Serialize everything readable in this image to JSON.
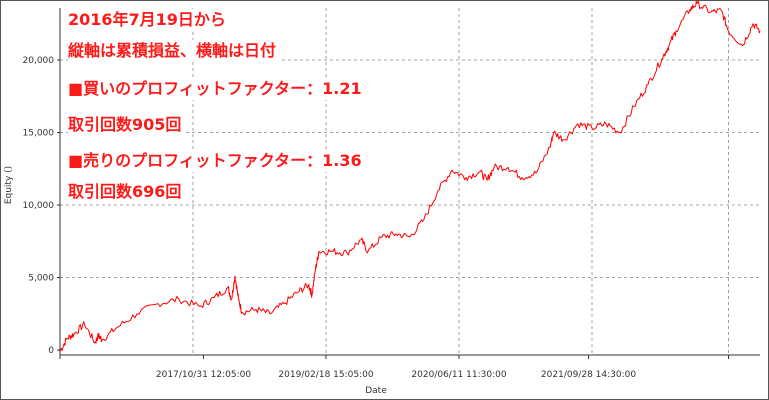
{
  "chart_data": {
    "type": "line",
    "title": "",
    "xlabel": "Date",
    "ylabel": "Equity ()",
    "ylim": [
      -300,
      24500
    ],
    "y_ticks": [
      0,
      5000,
      10000,
      15000,
      20000
    ],
    "y_tick_labels": [
      "0",
      "5,000",
      "10,000",
      "15,000",
      "20,000"
    ],
    "x_ticks": [
      "2017/10/31 12:05:00",
      "2019/02/18 15:05:00",
      "2020/06/11 11:30:00",
      "2021/09/28 14:30:00"
    ],
    "grid": true,
    "line_color": "#ff0000",
    "series": [
      {
        "x": [
          0.0,
          0.01,
          0.02,
          0.035,
          0.05,
          0.055,
          0.06,
          0.08,
          0.11,
          0.14,
          0.17,
          0.2,
          0.22,
          0.24,
          0.245,
          0.25,
          0.255,
          0.26,
          0.28,
          0.3,
          0.32,
          0.34,
          0.355,
          0.36,
          0.365,
          0.37,
          0.39,
          0.41,
          0.43,
          0.44,
          0.46,
          0.48,
          0.5,
          0.52,
          0.54,
          0.56,
          0.58,
          0.6,
          0.61,
          0.62,
          0.64,
          0.66,
          0.68,
          0.7,
          0.705,
          0.72,
          0.74,
          0.76,
          0.78,
          0.8,
          0.82,
          0.84,
          0.86,
          0.87,
          0.88,
          0.9,
          0.91,
          0.93,
          0.945,
          0.955,
          0.975,
          0.99,
          1.0
        ],
        "values": [
          -100,
          800,
          1100,
          1800,
          500,
          1000,
          700,
          1500,
          2500,
          3200,
          3500,
          3000,
          3600,
          4300,
          3500,
          5100,
          3500,
          2600,
          2800,
          2500,
          3200,
          4000,
          4500,
          3800,
          5600,
          6800,
          6800,
          6700,
          7600,
          6800,
          7800,
          8000,
          7800,
          9000,
          11000,
          12400,
          11900,
          12300,
          11700,
          12600,
          12600,
          11900,
          12200,
          14000,
          15000,
          14500,
          15600,
          15300,
          15600,
          15000,
          16800,
          18300,
          20100,
          21000,
          22000,
          23500,
          23900,
          23300,
          23400,
          22000,
          21000,
          22500,
          22000
        ]
      }
    ]
  },
  "annotations": [
    "2016年7月19日から",
    "縦軸は累積損益、横軸は日付",
    "■買いのプロフィットファクター：1.21",
    "取引回数905回",
    "■売りのプロフィットファクター：1.36",
    "取引回数696回"
  ]
}
